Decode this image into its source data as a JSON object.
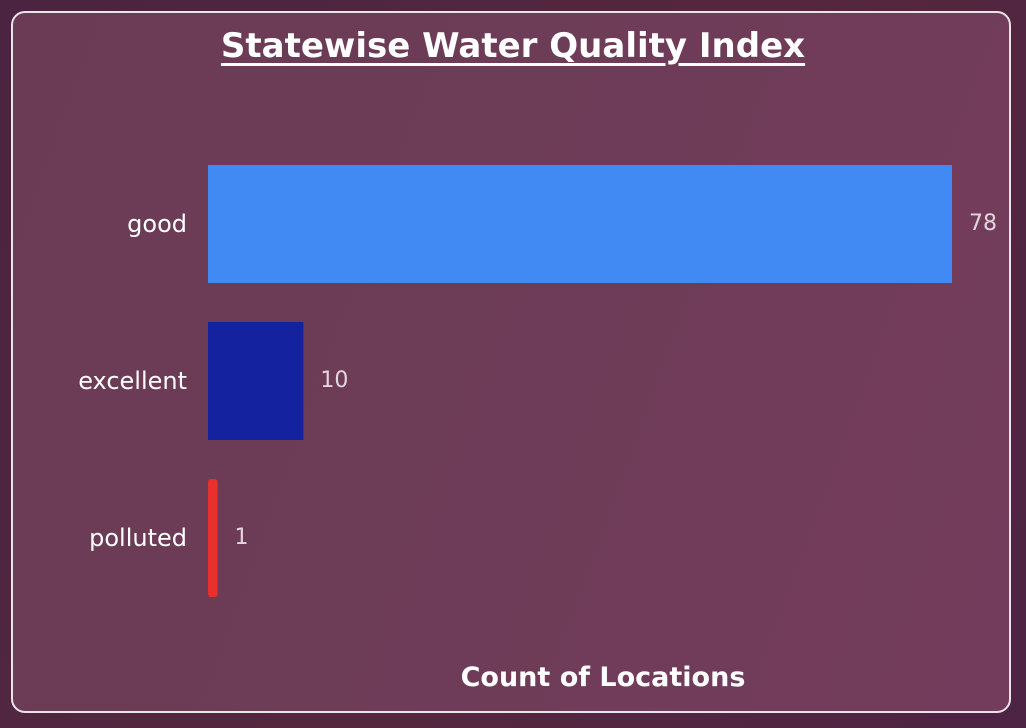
{
  "chart_data": {
    "type": "bar",
    "orientation": "horizontal",
    "title": "Statewise Water Quality Index",
    "xlabel": "Count of Locations",
    "ylabel": "",
    "categories": [
      "good",
      "excellent",
      "polluted"
    ],
    "values": [
      78,
      10,
      1
    ],
    "xlim": [
      0,
      78
    ],
    "bar_colors": [
      "#418af3",
      "#1522a0",
      "#e8312f"
    ],
    "grid": false,
    "legend": "none",
    "data_labels": true
  }
}
